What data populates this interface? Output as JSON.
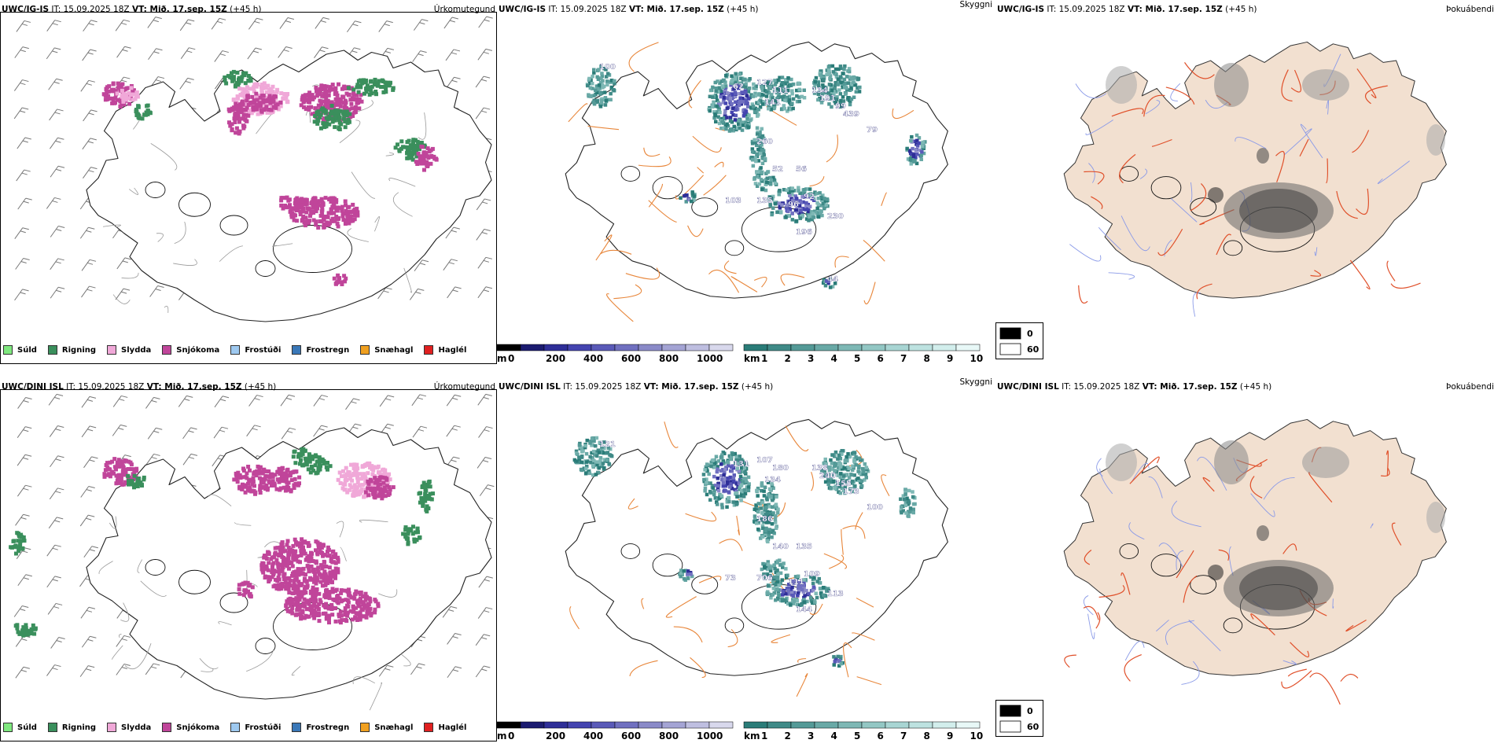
{
  "panels": {
    "precip": {
      "corner": "Úrkomutegund",
      "legend": [
        {
          "label": "Súld",
          "color": "#7fe87f"
        },
        {
          "label": "Rigning",
          "color": "#3a8f5c"
        },
        {
          "label": "Slydda",
          "color": "#f0a8d8"
        },
        {
          "label": "Snjókoma",
          "color": "#c0459a"
        },
        {
          "label": "Frostúði",
          "color": "#9ec9f0"
        },
        {
          "label": "Frostregn",
          "color": "#3a78b8"
        },
        {
          "label": "Snæhagl",
          "color": "#f0a020"
        },
        {
          "label": "Haglél",
          "color": "#e02020"
        }
      ]
    },
    "cloud": {
      "corner": "Skyggni",
      "height_unit": "m",
      "height_ticks": [
        "0",
        "200",
        "400",
        "600",
        "800",
        "1000"
      ],
      "visibility_unit": "km",
      "visibility_ticks": [
        "1",
        "2",
        "3",
        "4",
        "5",
        "6",
        "7",
        "8",
        "9",
        "10"
      ],
      "height_colors": [
        "#000000",
        "#1b1b70",
        "#2e2e98",
        "#4444b0",
        "#5a5ab8",
        "#7070c0",
        "#8a8ac8",
        "#a4a4d4",
        "#bebee0",
        "#d8d8ec"
      ],
      "visibility_colors": [
        "#2a7c78",
        "#3f8a87",
        "#549a97",
        "#69a9a6",
        "#7eb8b5",
        "#93c7c4",
        "#a8d5d3",
        "#bde2e0",
        "#d2eeec",
        "#e8f8f7"
      ]
    },
    "overcast": {
      "corner": "Þokuábendi",
      "legend": [
        {
          "label": "0",
          "color": "#000000"
        },
        {
          "label": "60",
          "color": "#ffffff"
        }
      ]
    }
  },
  "rows": [
    {
      "model": "UWC/IG-IS",
      "it": " IT: 15.09.2025 18Z ",
      "vt_label": "VT: Mið. 17.sep. 15Z",
      "lead": " (+45 h)",
      "cloud_labels": [
        "100",
        "62",
        "127",
        "111",
        "141",
        "134",
        "191",
        "99",
        "439",
        "79",
        "260",
        "52",
        "103",
        "135",
        "96",
        "92",
        "196",
        "230",
        "56",
        "44"
      ]
    },
    {
      "model": "UWC/DINI ISL",
      "it": " IT: 15.09.2025 18Z ",
      "vt_label": "VT: Mið. 17.sep. 15Z",
      "lead": " (+45 h)",
      "cloud_labels": [
        "121",
        "131",
        "107",
        "180",
        "134",
        "138",
        "240",
        "155",
        "173",
        "100",
        "186",
        "140",
        "73",
        "706",
        "111",
        "109",
        "144",
        "113",
        "135"
      ]
    }
  ]
}
